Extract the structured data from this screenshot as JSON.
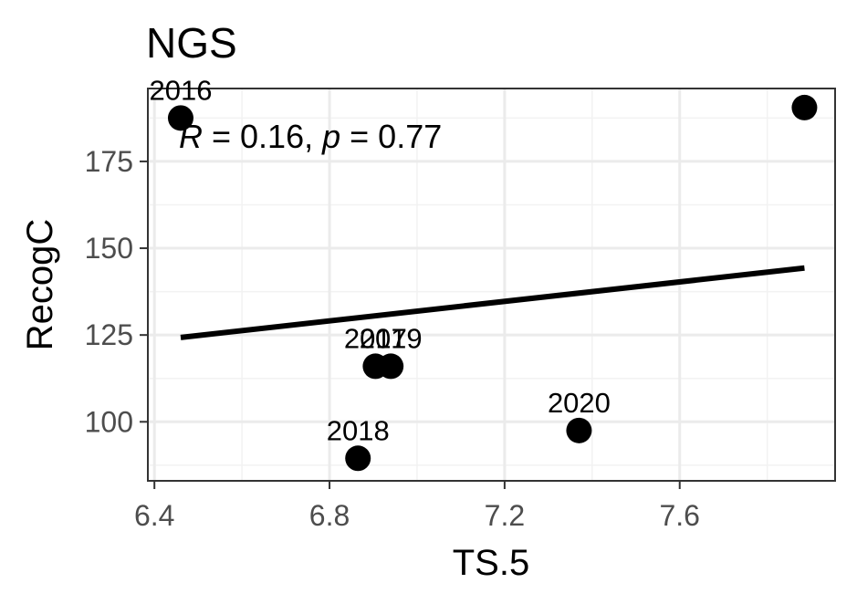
{
  "chart_data": {
    "type": "scatter",
    "title": "NGS",
    "xlabel": "TS.5",
    "ylabel": "RecogC",
    "xlim": [
      6.385,
      7.955
    ],
    "ylim": [
      83,
      196
    ],
    "xticks": [
      6.4,
      6.8,
      7.2,
      7.6
    ],
    "xtick_labels": [
      "6.4",
      "6.8",
      "7.2",
      "7.6"
    ],
    "yticks": [
      100,
      125,
      150,
      175
    ],
    "ytick_labels": [
      "100",
      "125",
      "150",
      "175"
    ],
    "grid": true,
    "points": [
      {
        "label": "2016",
        "x": 6.46,
        "y": 187.5
      },
      {
        "label": "2017",
        "x": 6.905,
        "y": 116
      },
      {
        "label": "2019",
        "x": 6.94,
        "y": 116
      },
      {
        "label": "2018",
        "x": 6.865,
        "y": 89.5
      },
      {
        "label": "2020",
        "x": 7.37,
        "y": 97.5
      },
      {
        "label": "",
        "x": 7.885,
        "y": 190.5
      }
    ],
    "regression": {
      "x": [
        6.46,
        7.885
      ],
      "y": [
        124.3,
        144.3
      ]
    },
    "annotation": {
      "r_symbol": "R",
      "r_text": " = 0.16, ",
      "p_symbol": "p",
      "p_text": " = 0.77"
    }
  }
}
